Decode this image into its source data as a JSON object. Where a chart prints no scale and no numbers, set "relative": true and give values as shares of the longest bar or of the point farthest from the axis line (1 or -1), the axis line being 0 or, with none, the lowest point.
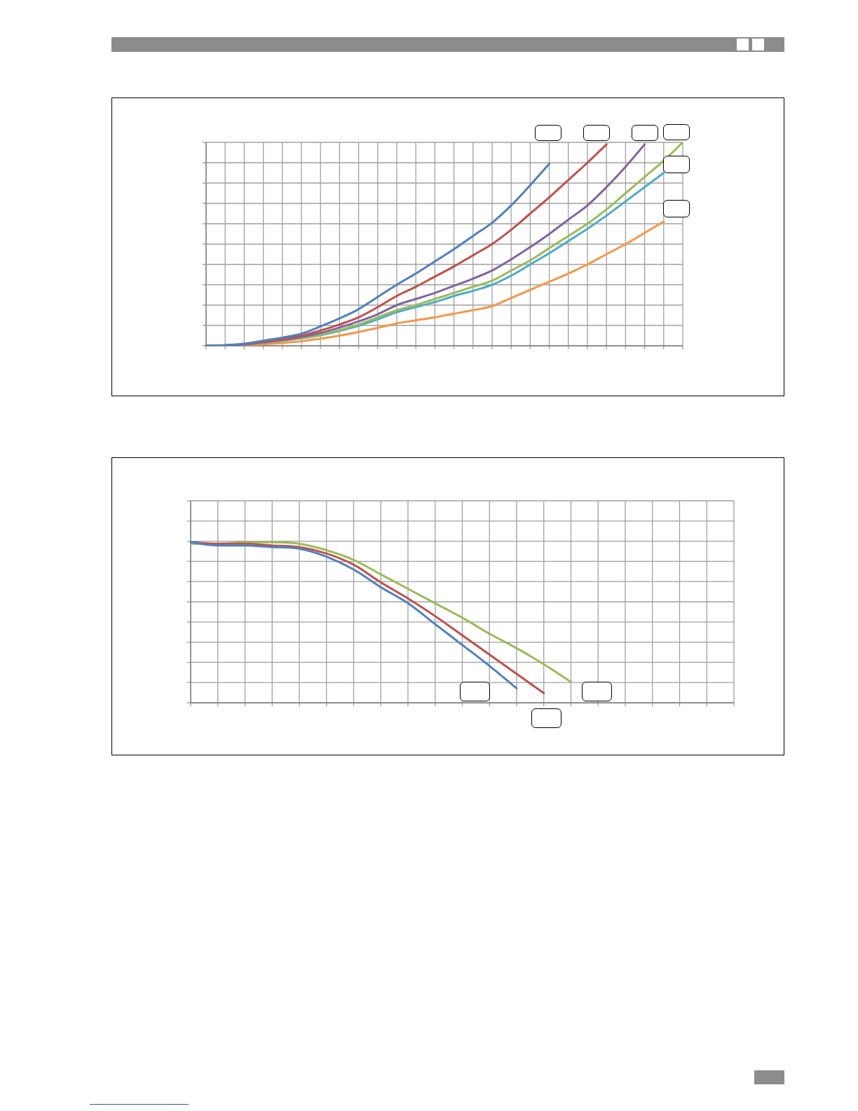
{
  "chart_data": [
    {
      "type": "line",
      "relative": true,
      "grid": true,
      "legend": false,
      "tick_labels": false,
      "marker": "none",
      "line_style": "solid",
      "categories": [
        null,
        null,
        null,
        null,
        null,
        null,
        null,
        null,
        null,
        null,
        null,
        null,
        null,
        null,
        null,
        null,
        null,
        null,
        null,
        null,
        null,
        null,
        null,
        null,
        null,
        null
      ],
      "series": [
        {
          "color": "#4f81bd",
          "values": [
            0,
            0.003,
            0.01,
            0.025,
            0.04,
            0.06,
            0.095,
            0.135,
            0.18,
            0.24,
            0.3,
            0.355,
            0.415,
            0.475,
            0.54,
            0.605,
            0.69,
            0.79,
            0.895,
            null,
            null,
            null,
            null,
            null,
            null,
            null
          ]
        },
        {
          "color": "#c0504d",
          "values": [
            0,
            0.003,
            0.008,
            0.02,
            0.033,
            0.05,
            0.075,
            0.105,
            0.14,
            0.19,
            0.245,
            0.29,
            0.34,
            0.39,
            0.445,
            0.5,
            0.57,
            0.65,
            0.73,
            0.815,
            0.9,
            0.99,
            null,
            null,
            null,
            null
          ]
        },
        {
          "color": "#8064a2",
          "values": [
            0,
            0.003,
            0.007,
            0.017,
            0.028,
            0.043,
            0.063,
            0.09,
            0.12,
            0.155,
            0.2,
            0.23,
            0.26,
            0.295,
            0.33,
            0.37,
            0.425,
            0.485,
            0.55,
            0.62,
            0.69,
            0.78,
            0.88,
            0.99,
            null,
            null
          ]
        },
        {
          "color": "#9bbb59",
          "values": [
            0,
            0.002,
            0.006,
            0.015,
            0.025,
            0.038,
            0.055,
            0.078,
            0.105,
            0.14,
            0.175,
            0.2,
            0.23,
            0.26,
            0.29,
            0.32,
            0.37,
            0.42,
            0.48,
            0.54,
            0.6,
            0.67,
            0.75,
            0.83,
            0.91,
            1
          ]
        },
        {
          "color": "#4bacc6",
          "values": [
            0,
            0.002,
            0.006,
            0.014,
            0.024,
            0.036,
            0.052,
            0.073,
            0.098,
            0.13,
            0.165,
            0.19,
            0.215,
            0.245,
            0.27,
            0.3,
            0.345,
            0.4,
            0.455,
            0.515,
            0.575,
            0.64,
            0.71,
            0.78,
            0.85,
            null
          ]
        },
        {
          "color": "#f79646",
          "values": [
            0,
            0.001,
            0.004,
            0.008,
            0.014,
            0.022,
            0.035,
            0.05,
            0.068,
            0.088,
            0.11,
            0.125,
            0.14,
            0.158,
            0.175,
            0.195,
            0.235,
            0.275,
            0.315,
            0.355,
            0.4,
            0.45,
            0.5,
            0.555,
            0.61,
            null
          ]
        }
      ]
    },
    {
      "type": "line",
      "relative": true,
      "grid": true,
      "legend": false,
      "tick_labels": false,
      "marker": "none",
      "line_style": "solid",
      "categories": [
        null,
        null,
        null,
        null,
        null,
        null,
        null,
        null,
        null,
        null,
        null,
        null,
        null,
        null,
        null,
        null,
        null,
        null,
        null,
        null,
        null
      ],
      "series": [
        {
          "color": "#4f81bd",
          "values": [
            1,
            0.98,
            0.98,
            0.97,
            0.96,
            0.91,
            0.83,
            0.72,
            0.62,
            0.49,
            0.36,
            0.23,
            0.09,
            null,
            null,
            null,
            null,
            null,
            null,
            null,
            null
          ]
        },
        {
          "color": "#c0504d",
          "values": [
            1,
            0.99,
            0.99,
            0.98,
            0.97,
            0.93,
            0.86,
            0.75,
            0.65,
            0.54,
            0.42,
            0.3,
            0.18,
            0.06,
            null,
            null,
            null,
            null,
            null,
            null,
            null
          ]
        },
        {
          "color": "#9bbb59",
          "values": [
            0.99,
            0.99,
            1,
            1,
            0.99,
            0.95,
            0.89,
            0.8,
            0.71,
            0.62,
            0.53,
            0.43,
            0.34,
            0.24,
            0.13,
            null,
            null,
            null,
            null,
            null,
            null
          ]
        }
      ]
    }
  ]
}
